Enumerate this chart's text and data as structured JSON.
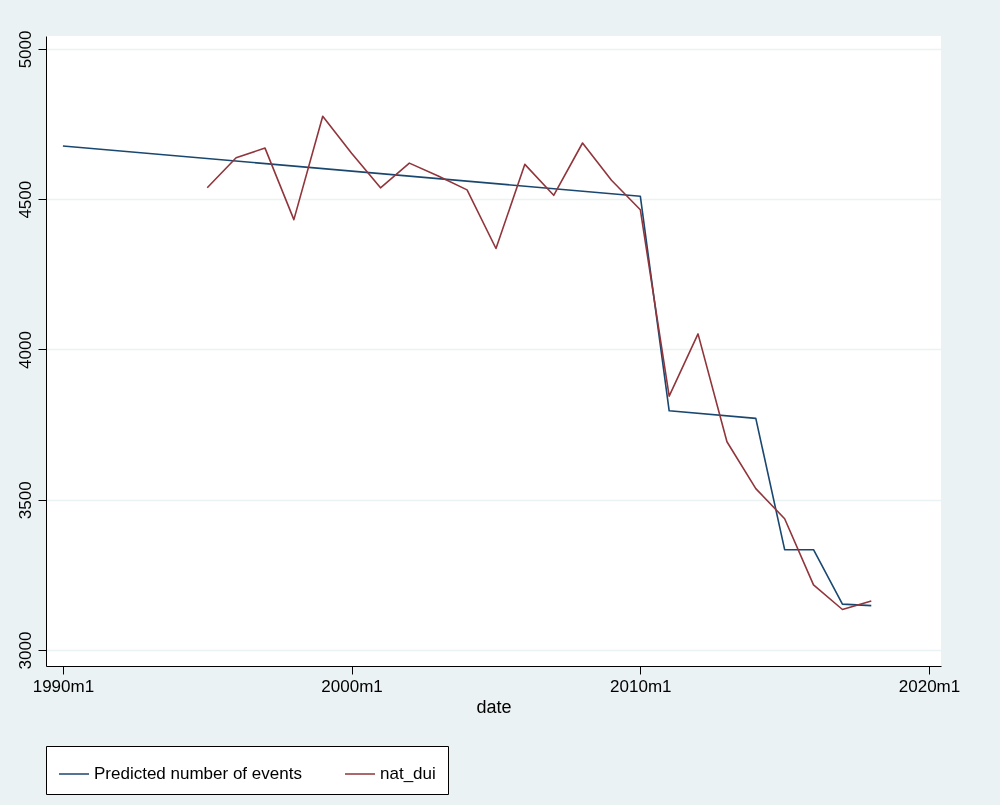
{
  "chart_data": {
    "type": "line",
    "xlabel": "date",
    "xlim": [
      "1989-06",
      "2020-06"
    ],
    "xticks": [
      {
        "value": "1990-01",
        "label": "1990m1"
      },
      {
        "value": "2000-01",
        "label": "2000m1"
      },
      {
        "value": "2010-01",
        "label": "2010m1"
      },
      {
        "value": "2020-01",
        "label": "2020m1"
      }
    ],
    "ylim": [
      2947,
      5043
    ],
    "yticks": [
      3000,
      3500,
      4000,
      4500,
      5000
    ],
    "grid": "y",
    "legend": "bottom",
    "marker": "none",
    "line_style": "solid",
    "series": [
      {
        "name": "Predicted number of events",
        "color": "#1a476f",
        "x": [
          "1990-01",
          "2010-01",
          "2011-01",
          "2014-01",
          "2015-01",
          "2016-01",
          "2017-01",
          "2018-01"
        ],
        "values": [
          4677,
          4510,
          3796,
          3771,
          3334,
          3334,
          3153,
          3148
        ]
      },
      {
        "name": "nat_dui",
        "color": "#90353b",
        "x": [
          "1995-01",
          "1996-01",
          "1997-01",
          "1998-01",
          "1999-01",
          "2000-01",
          "2001-01",
          "2002-01",
          "2003-01",
          "2004-01",
          "2005-01",
          "2006-01",
          "2007-01",
          "2008-01",
          "2009-01",
          "2010-01",
          "2011-01",
          "2012-01",
          "2013-01",
          "2014-01",
          "2015-01",
          "2016-01",
          "2017-01",
          "2018-01"
        ],
        "values": [
          4538,
          4638,
          4670,
          4432,
          4776,
          4653,
          4538,
          4620,
          4577,
          4531,
          4336,
          4616,
          4513,
          4687,
          4563,
          4465,
          3845,
          4052,
          3693,
          3537,
          3437,
          3217,
          3135,
          3163
        ]
      }
    ]
  }
}
